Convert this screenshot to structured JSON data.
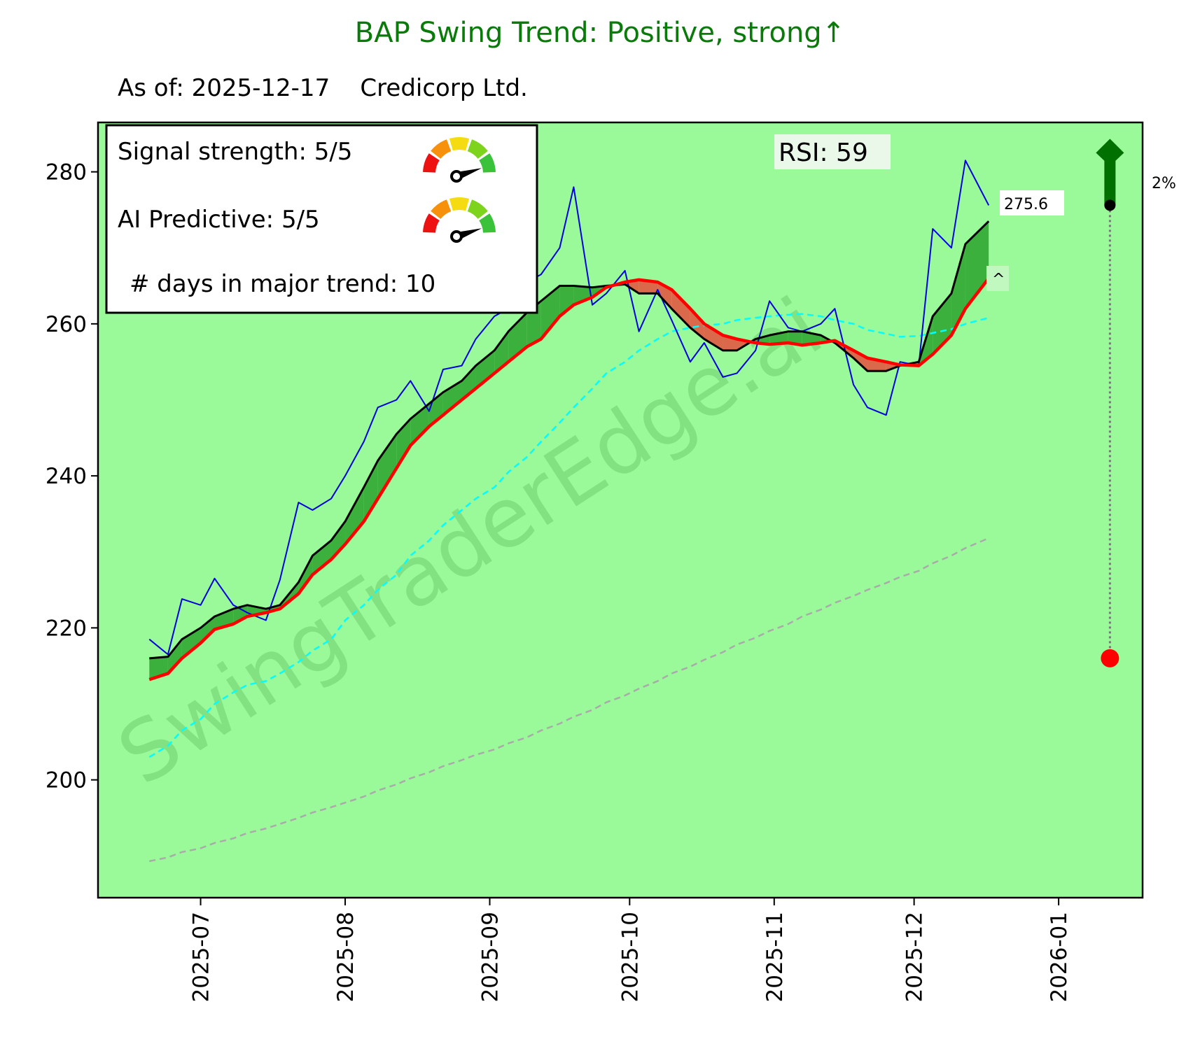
{
  "title": "BAP  Swing Trend: Positive, strong↑",
  "subtitle": "As of: 2025-12-17    Credicorp Ltd.",
  "legend_box": {
    "signal_strength": "Signal strength: 5/5",
    "signal_strength_value": 5,
    "ai_predictive": "AI Predictive: 5/5",
    "ai_predictive_value": 5,
    "days_in_trend": "# days in major trend: 10"
  },
  "rsi_label": "RSI:  59",
  "last_price_label": "275.6",
  "caret_label": "^",
  "target_pct_label": "2%",
  "watermark": "SwingTraderEdge.ai",
  "colors": {
    "title": "#0a7a0a",
    "plot_bg": "#9afa9a",
    "price": "#0000dd",
    "fast_ma": "#000000",
    "slow_ma": "#ff0000",
    "bull_fill": "#3cb03c",
    "bear_fill": "#d9694a",
    "ma50": "#00ffff",
    "ma200": "#aaaaaa",
    "arrow": "#007000",
    "target_dot": "#ff0000"
  },
  "chart_data": {
    "type": "line",
    "title": "BAP  Swing Trend: Positive, strong↑",
    "xlabel": "",
    "ylabel": "",
    "ylim": [
      184.5,
      286.5
    ],
    "xlim": [
      "2025-06-09",
      "2026-01-19"
    ],
    "grid": false,
    "yticks": [
      200,
      220,
      240,
      260,
      280
    ],
    "ytick_labels": [
      "200",
      "220",
      "240",
      "260",
      "280"
    ],
    "xticks": [
      "2025-07-01",
      "2025-08-01",
      "2025-09-01",
      "2025-10-01",
      "2025-11-01",
      "2025-12-01",
      "2026-01-01"
    ],
    "xtick_labels": [
      "2025-07",
      "2025-08",
      "2025-09",
      "2025-10",
      "2025-11",
      "2025-12",
      "2026-01"
    ],
    "dates": [
      "2025-06-20",
      "2025-06-24",
      "2025-06-27",
      "2025-07-01",
      "2025-07-04",
      "2025-07-08",
      "2025-07-11",
      "2025-07-15",
      "2025-07-18",
      "2025-07-22",
      "2025-07-25",
      "2025-07-29",
      "2025-08-01",
      "2025-08-05",
      "2025-08-08",
      "2025-08-12",
      "2025-08-15",
      "2025-08-19",
      "2025-08-22",
      "2025-08-26",
      "2025-08-29",
      "2025-09-02",
      "2025-09-05",
      "2025-09-09",
      "2025-09-12",
      "2025-09-16",
      "2025-09-19",
      "2025-09-23",
      "2025-09-26",
      "2025-09-30",
      "2025-10-03",
      "2025-10-07",
      "2025-10-10",
      "2025-10-14",
      "2025-10-17",
      "2025-10-21",
      "2025-10-24",
      "2025-10-28",
      "2025-10-31",
      "2025-11-04",
      "2025-11-07",
      "2025-11-11",
      "2025-11-14",
      "2025-11-18",
      "2025-11-21",
      "2025-11-25",
      "2025-11-28",
      "2025-12-02",
      "2025-12-05",
      "2025-12-09",
      "2025-12-12",
      "2025-12-17"
    ],
    "series": [
      {
        "name": "Close",
        "style": "solid-thin",
        "values": [
          218.5,
          216.5,
          223.8,
          223.0,
          226.5,
          223.0,
          222.0,
          221.0,
          226.3,
          236.5,
          235.5,
          237.0,
          240.0,
          244.5,
          249.0,
          250.0,
          252.5,
          248.5,
          254.0,
          254.5,
          258.0,
          261.0,
          262.0,
          265.5,
          266.5,
          270.0,
          278.0,
          262.5,
          264.0,
          267.0,
          259.0,
          264.5,
          260.5,
          255.0,
          257.5,
          253.0,
          253.5,
          256.5,
          263.0,
          259.5,
          259.0,
          260.0,
          262.0,
          252.0,
          249.0,
          248.0,
          255.0,
          254.5,
          272.5,
          270.0,
          281.5,
          275.6
        ]
      },
      {
        "name": "Fast MA",
        "style": "solid-black",
        "values": [
          216.0,
          216.2,
          218.5,
          220.0,
          221.5,
          222.5,
          223.0,
          222.5,
          223.0,
          226.0,
          229.5,
          231.5,
          234.0,
          238.5,
          242.0,
          245.5,
          247.5,
          249.5,
          251.0,
          252.5,
          254.5,
          256.5,
          259.0,
          261.5,
          263.0,
          265.0,
          265.0,
          264.8,
          265.0,
          265.2,
          264.0,
          264.0,
          262.0,
          259.5,
          258.0,
          256.5,
          256.5,
          258.0,
          258.5,
          259.0,
          259.0,
          258.5,
          257.5,
          255.5,
          253.8,
          253.8,
          254.5,
          255.0,
          261.0,
          264.0,
          270.5,
          273.5
        ]
      },
      {
        "name": "Slow MA",
        "style": "solid-red-thick",
        "values": [
          213.2,
          214.0,
          216.0,
          218.0,
          219.8,
          220.5,
          221.5,
          222.0,
          222.5,
          224.5,
          227.0,
          229.0,
          231.0,
          234.0,
          237.0,
          241.0,
          244.0,
          246.5,
          248.0,
          250.0,
          251.5,
          253.5,
          255.0,
          257.0,
          258.0,
          261.0,
          262.5,
          263.5,
          264.8,
          265.5,
          265.8,
          265.5,
          264.5,
          262.0,
          260.0,
          258.5,
          258.0,
          257.5,
          257.3,
          257.5,
          257.2,
          257.5,
          257.8,
          256.5,
          255.5,
          255.0,
          254.6,
          254.5,
          256.0,
          258.5,
          262.0,
          266.0
        ]
      },
      {
        "name": "MA50",
        "style": "dashed-cyan",
        "values": [
          203.0,
          204.5,
          206.5,
          208.0,
          210.0,
          211.5,
          212.5,
          213.0,
          214.0,
          215.5,
          217.0,
          218.5,
          221.0,
          223.0,
          225.0,
          227.0,
          229.5,
          231.5,
          233.5,
          235.5,
          237.0,
          238.5,
          240.5,
          242.5,
          244.5,
          247.0,
          249.0,
          251.5,
          253.5,
          255.0,
          256.5,
          258.0,
          259.0,
          259.5,
          259.8,
          260.0,
          260.5,
          260.8,
          261.0,
          261.2,
          261.3,
          261.0,
          260.5,
          260.0,
          259.2,
          258.7,
          258.3,
          258.4,
          258.8,
          259.3,
          260.0,
          260.8
        ]
      },
      {
        "name": "MA200",
        "style": "dashed-gray",
        "values": [
          189.3,
          189.8,
          190.5,
          191.0,
          191.7,
          192.3,
          193.0,
          193.6,
          194.2,
          195.0,
          195.7,
          196.4,
          197.0,
          197.8,
          198.6,
          199.4,
          200.2,
          201.0,
          201.8,
          202.6,
          203.3,
          204.0,
          204.8,
          205.6,
          206.5,
          207.4,
          208.3,
          209.2,
          210.2,
          211.1,
          212.0,
          213.0,
          214.0,
          214.9,
          215.8,
          216.8,
          217.8,
          218.7,
          219.6,
          220.5,
          221.5,
          222.4,
          223.3,
          224.2,
          225.0,
          225.9,
          226.7,
          227.5,
          228.5,
          229.5,
          230.5,
          231.8
        ]
      }
    ],
    "annotations": {
      "rsi": 59,
      "last_price": 275.6,
      "target": {
        "date": "2026-01-12",
        "from_price": 216.0,
        "to_price": 275.6,
        "label": "2%",
        "direction": "up"
      }
    }
  }
}
